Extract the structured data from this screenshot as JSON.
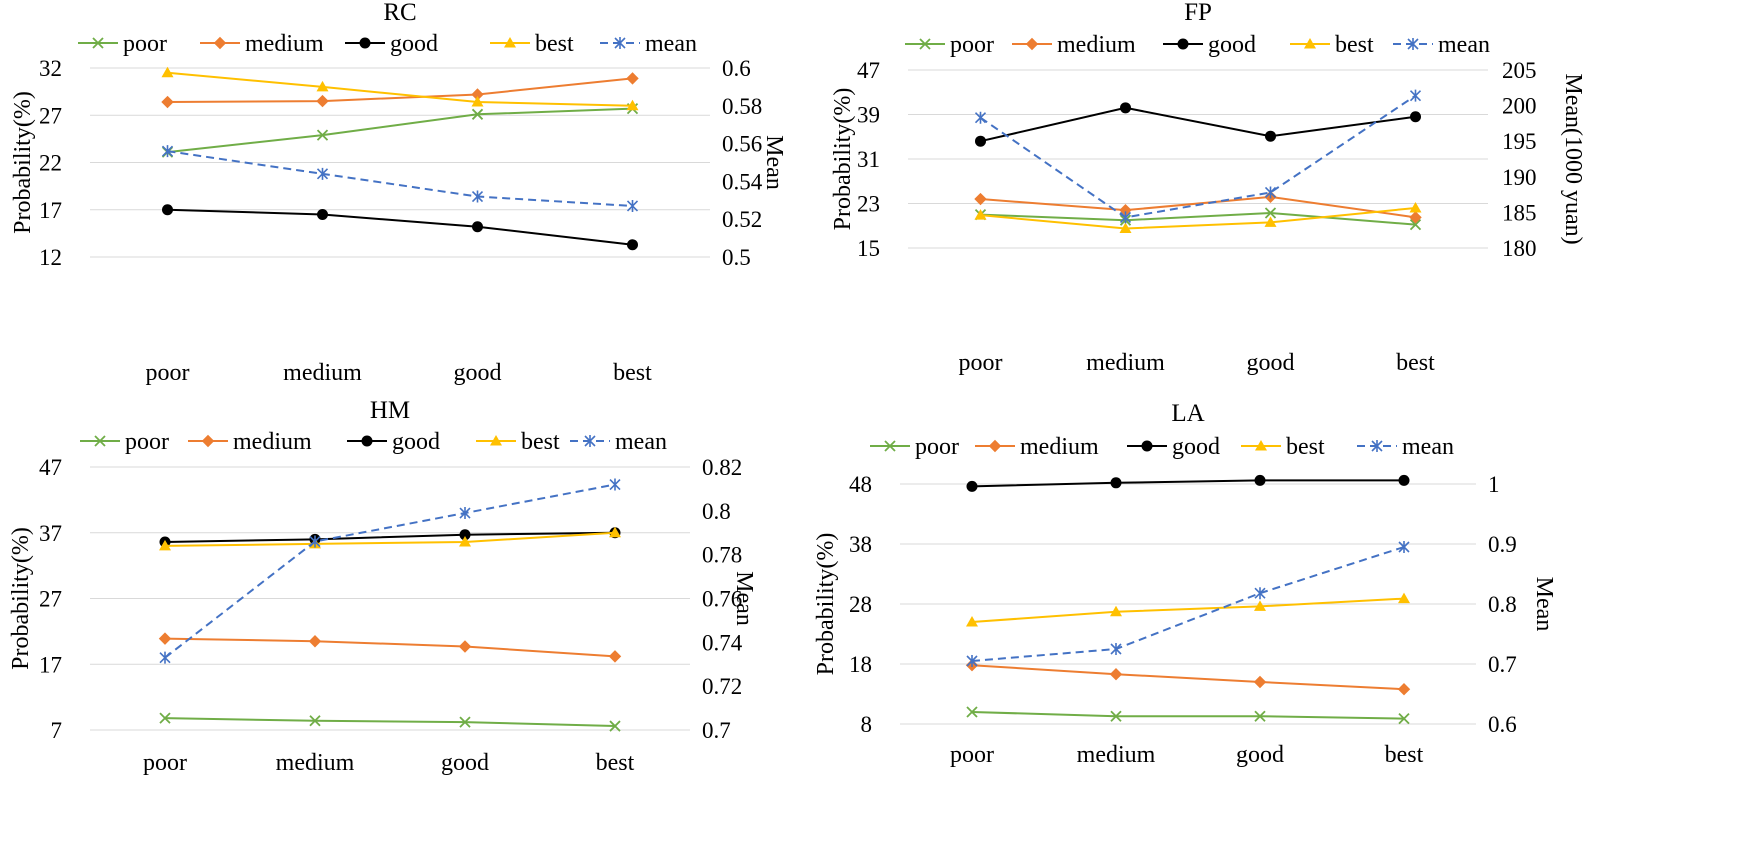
{
  "chart_data": [
    {
      "id": "rc",
      "type": "line",
      "title": "RC",
      "categories": [
        "poor",
        "medium",
        "good",
        "best"
      ],
      "ylabel": "Probability(%)",
      "y2label": "Mean",
      "ylim": [
        12,
        32
      ],
      "yticks": [
        12,
        17,
        22,
        27,
        32
      ],
      "y2lim": [
        0.5,
        0.6
      ],
      "y2ticks": [
        "0.5",
        "0.52",
        "0.54",
        "0.56",
        "0.58",
        "0.6"
      ],
      "series": [
        {
          "name": "poor",
          "axis": "left",
          "color": "#70ad47",
          "marker": "x",
          "dash": false,
          "values": [
            23.1,
            24.9,
            27.1,
            27.7
          ]
        },
        {
          "name": "medium",
          "axis": "left",
          "color": "#ed7d31",
          "marker": "diamond",
          "dash": false,
          "values": [
            28.4,
            28.5,
            29.2,
            30.9
          ]
        },
        {
          "name": "good",
          "axis": "left",
          "color": "#000000",
          "marker": "circle",
          "dash": false,
          "values": [
            17.0,
            16.5,
            15.2,
            13.3
          ]
        },
        {
          "name": "best",
          "axis": "left",
          "color": "#ffc000",
          "marker": "triangle",
          "dash": false,
          "values": [
            31.5,
            30.0,
            28.4,
            28.0
          ]
        },
        {
          "name": "mean",
          "axis": "right",
          "color": "#4472c4",
          "marker": "star",
          "dash": true,
          "values": [
            0.556,
            0.544,
            0.532,
            0.527
          ]
        }
      ]
    },
    {
      "id": "fp",
      "type": "line",
      "title": "FP",
      "categories": [
        "poor",
        "medium",
        "good",
        "best"
      ],
      "ylabel": "Probability(%)",
      "y2label": "Mean(1000 yuan)",
      "ylim": [
        15,
        47
      ],
      "yticks": [
        15,
        23,
        31,
        39,
        47
      ],
      "y2lim": [
        180,
        205
      ],
      "y2ticks": [
        "180",
        "185",
        "190",
        "195",
        "200",
        "205"
      ],
      "series": [
        {
          "name": "poor",
          "axis": "left",
          "color": "#70ad47",
          "marker": "x",
          "dash": false,
          "values": [
            21.0,
            20.0,
            21.3,
            19.2
          ]
        },
        {
          "name": "medium",
          "axis": "left",
          "color": "#ed7d31",
          "marker": "diamond",
          "dash": false,
          "values": [
            23.8,
            21.8,
            24.2,
            20.5
          ]
        },
        {
          "name": "good",
          "axis": "left",
          "color": "#000000",
          "marker": "circle",
          "dash": false,
          "values": [
            34.2,
            40.2,
            35.1,
            38.6
          ]
        },
        {
          "name": "best",
          "axis": "left",
          "color": "#ffc000",
          "marker": "triangle",
          "dash": false,
          "values": [
            20.9,
            18.5,
            19.6,
            22.2
          ]
        },
        {
          "name": "mean",
          "axis": "right",
          "color": "#4472c4",
          "marker": "star",
          "dash": true,
          "values": [
            198.3,
            184.3,
            187.8,
            201.4
          ]
        }
      ]
    },
    {
      "id": "hm",
      "type": "line",
      "title": "HM",
      "categories": [
        "poor",
        "medium",
        "good",
        "best"
      ],
      "ylabel": "Probability(%)",
      "y2label": "Mean",
      "ylim": [
        7,
        47
      ],
      "yticks": [
        7,
        17,
        27,
        37,
        47
      ],
      "y2lim": [
        0.7,
        0.82
      ],
      "y2ticks": [
        "0.7",
        "0.72",
        "0.74",
        "0.76",
        "0.78",
        "0.8",
        "0.82"
      ],
      "series": [
        {
          "name": "poor",
          "axis": "left",
          "color": "#70ad47",
          "marker": "x",
          "dash": false,
          "values": [
            8.8,
            8.4,
            8.2,
            7.6
          ]
        },
        {
          "name": "medium",
          "axis": "left",
          "color": "#ed7d31",
          "marker": "diamond",
          "dash": false,
          "values": [
            20.9,
            20.5,
            19.7,
            18.2
          ]
        },
        {
          "name": "good",
          "axis": "left",
          "color": "#000000",
          "marker": "circle",
          "dash": false,
          "values": [
            35.6,
            36.0,
            36.7,
            37.0
          ]
        },
        {
          "name": "best",
          "axis": "left",
          "color": "#ffc000",
          "marker": "triangle",
          "dash": false,
          "values": [
            35.0,
            35.3,
            35.6,
            37.0
          ]
        },
        {
          "name": "mean",
          "axis": "right",
          "color": "#4472c4",
          "marker": "star",
          "dash": true,
          "values": [
            0.733,
            0.786,
            0.799,
            0.812
          ]
        }
      ]
    },
    {
      "id": "la",
      "type": "line",
      "title": "LA",
      "categories": [
        "poor",
        "medium",
        "good",
        "best"
      ],
      "ylabel": "Probability(%)",
      "y2label": "Mean",
      "ylim": [
        8,
        48
      ],
      "yticks": [
        8,
        18,
        28,
        38,
        48
      ],
      "y2lim": [
        0.6,
        1.0
      ],
      "y2ticks": [
        "0.6",
        "0.7",
        "0.8",
        "0.9",
        "1"
      ],
      "series": [
        {
          "name": "poor",
          "axis": "left",
          "color": "#70ad47",
          "marker": "x",
          "dash": false,
          "values": [
            10.0,
            9.3,
            9.3,
            8.9
          ]
        },
        {
          "name": "medium",
          "axis": "left",
          "color": "#ed7d31",
          "marker": "diamond",
          "dash": false,
          "values": [
            17.8,
            16.3,
            15.0,
            13.8
          ]
        },
        {
          "name": "good",
          "axis": "left",
          "color": "#000000",
          "marker": "circle",
          "dash": false,
          "values": [
            47.6,
            48.2,
            48.6,
            48.6
          ]
        },
        {
          "name": "best",
          "axis": "left",
          "color": "#ffc000",
          "marker": "triangle",
          "dash": false,
          "values": [
            25.0,
            26.7,
            27.6,
            28.9
          ]
        },
        {
          "name": "mean",
          "axis": "right",
          "color": "#4472c4",
          "marker": "star",
          "dash": true,
          "values": [
            0.705,
            0.725,
            0.818,
            0.895
          ]
        }
      ]
    }
  ]
}
